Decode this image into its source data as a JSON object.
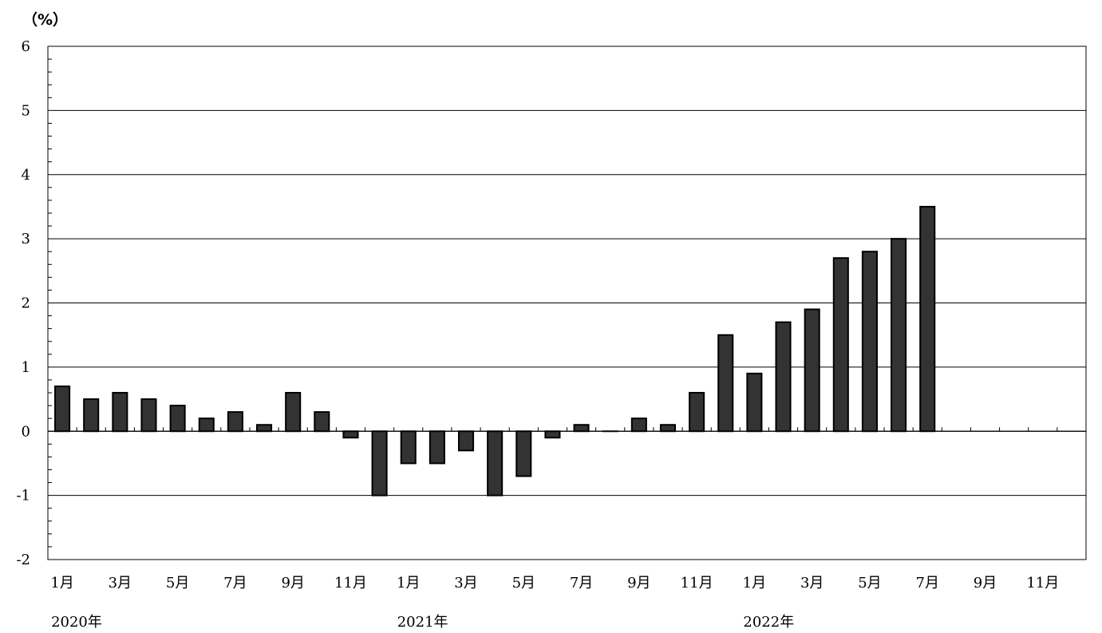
{
  "chart_data": {
    "type": "bar",
    "title": "",
    "xlabel": "",
    "ylabel": "",
    "unit_label": "（%）",
    "ylim": [
      -2,
      6
    ],
    "yticks": [
      "6",
      "5",
      "4",
      "3",
      "2",
      "1",
      "0",
      "-1",
      "-2"
    ],
    "grid": true,
    "bar_color": "#333333",
    "categories": [
      "2020-01",
      "2020-02",
      "2020-03",
      "2020-04",
      "2020-05",
      "2020-06",
      "2020-07",
      "2020-08",
      "2020-09",
      "2020-10",
      "2020-11",
      "2020-12",
      "2021-01",
      "2021-02",
      "2021-03",
      "2021-04",
      "2021-05",
      "2021-06",
      "2021-07",
      "2021-08",
      "2021-09",
      "2021-10",
      "2021-11",
      "2021-12",
      "2022-01",
      "2022-02",
      "2022-03",
      "2022-04",
      "2022-05",
      "2022-06",
      "2022-07",
      "2022-08",
      "2022-09",
      "2022-10",
      "2022-11",
      "2022-12"
    ],
    "values": [
      0.7,
      0.5,
      0.6,
      0.5,
      0.4,
      0.2,
      0.3,
      0.1,
      0.6,
      0.3,
      -0.1,
      -1.0,
      -0.5,
      -0.5,
      -0.3,
      -1.0,
      -0.7,
      -0.1,
      0.1,
      0.0,
      0.2,
      0.1,
      0.6,
      1.5,
      0.9,
      1.7,
      1.9,
      2.7,
      2.8,
      3.0,
      3.5,
      null,
      null,
      null,
      null,
      null
    ],
    "month_labels": [
      {
        "index": 0,
        "text": "1月"
      },
      {
        "index": 2,
        "text": "3月"
      },
      {
        "index": 4,
        "text": "5月"
      },
      {
        "index": 6,
        "text": "7月"
      },
      {
        "index": 8,
        "text": "9月"
      },
      {
        "index": 10,
        "text": "11月"
      },
      {
        "index": 12,
        "text": "1月"
      },
      {
        "index": 14,
        "text": "3月"
      },
      {
        "index": 16,
        "text": "5月"
      },
      {
        "index": 18,
        "text": "7月"
      },
      {
        "index": 20,
        "text": "9月"
      },
      {
        "index": 22,
        "text": "11月"
      },
      {
        "index": 24,
        "text": "1月"
      },
      {
        "index": 26,
        "text": "3月"
      },
      {
        "index": 28,
        "text": "5月"
      },
      {
        "index": 30,
        "text": "7月"
      },
      {
        "index": 32,
        "text": "9月"
      },
      {
        "index": 34,
        "text": "11月"
      }
    ],
    "year_labels": [
      {
        "index": 0,
        "text": "2020年"
      },
      {
        "index": 12,
        "text": "2021年"
      },
      {
        "index": 24,
        "text": "2022年"
      }
    ]
  }
}
